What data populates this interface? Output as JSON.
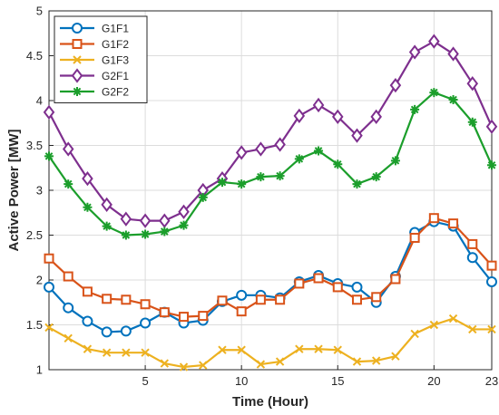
{
  "chart_data": {
    "type": "line",
    "xlabel": "Time (Hour)",
    "ylabel": "Active Power  [MW]",
    "xlim": [
      0,
      23
    ],
    "ylim": [
      1,
      5
    ],
    "xticks": [
      "5",
      "10",
      "15",
      "20",
      "23"
    ],
    "xtick_values": [
      5,
      10,
      15,
      20,
      23
    ],
    "yticks": [
      "1",
      "1.5",
      "2",
      "2.5",
      "3",
      "3.5",
      "4",
      "4.5",
      "5"
    ],
    "ytick_values": [
      1,
      1.5,
      2,
      2.5,
      3,
      3.5,
      4,
      4.5,
      5
    ],
    "grid": true,
    "legend_position": "top-left",
    "x": [
      0,
      1,
      2,
      3,
      4,
      5,
      6,
      7,
      8,
      9,
      10,
      11,
      12,
      13,
      14,
      15,
      16,
      17,
      18,
      19,
      20,
      21,
      22,
      23
    ],
    "series": [
      {
        "name": "G1F1",
        "color": "#0072BD",
        "marker": "circle",
        "values": [
          1.92,
          1.69,
          1.54,
          1.42,
          1.43,
          1.52,
          1.64,
          1.52,
          1.55,
          1.76,
          1.83,
          1.83,
          1.8,
          1.98,
          2.05,
          1.96,
          1.92,
          1.75,
          2.04,
          2.53,
          2.65,
          2.6,
          2.25,
          1.98
        ]
      },
      {
        "name": "G1F2",
        "color": "#D95319",
        "marker": "square",
        "values": [
          2.24,
          2.04,
          1.87,
          1.79,
          1.78,
          1.73,
          1.64,
          1.59,
          1.6,
          1.77,
          1.65,
          1.78,
          1.78,
          1.96,
          2.02,
          1.92,
          1.78,
          1.81,
          2.01,
          2.47,
          2.69,
          2.63,
          2.4,
          2.16
        ]
      },
      {
        "name": "G1F3",
        "color": "#EDB120",
        "marker": "x",
        "values": [
          1.47,
          1.35,
          1.23,
          1.19,
          1.19,
          1.19,
          1.07,
          1.03,
          1.05,
          1.22,
          1.22,
          1.06,
          1.09,
          1.23,
          1.23,
          1.22,
          1.09,
          1.1,
          1.15,
          1.4,
          1.5,
          1.57,
          1.45,
          1.45
        ]
      },
      {
        "name": "G2F1",
        "color": "#7E2F8E",
        "marker": "diamond",
        "values": [
          3.87,
          3.46,
          3.13,
          2.84,
          2.68,
          2.66,
          2.66,
          2.76,
          3.0,
          3.13,
          3.42,
          3.46,
          3.51,
          3.83,
          3.95,
          3.82,
          3.61,
          3.82,
          4.17,
          4.54,
          4.66,
          4.52,
          4.19,
          3.71
        ]
      },
      {
        "name": "G2F2",
        "color": "#1B9E2B",
        "marker": "asterisk",
        "values": [
          3.38,
          3.07,
          2.81,
          2.6,
          2.5,
          2.51,
          2.54,
          2.61,
          2.92,
          3.09,
          3.07,
          3.15,
          3.16,
          3.35,
          3.44,
          3.29,
          3.07,
          3.15,
          3.33,
          3.9,
          4.09,
          4.01,
          3.76,
          3.28
        ]
      }
    ]
  }
}
